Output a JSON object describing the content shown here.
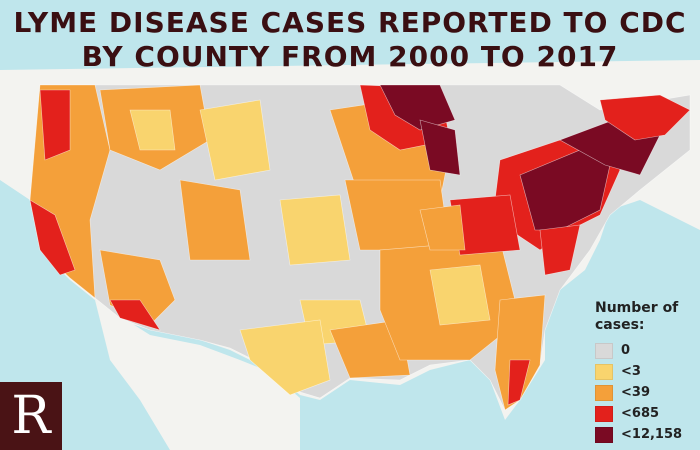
{
  "title": {
    "line1": "LYME DISEASE CASES REPORTED TO CDC",
    "line2": "BY COUNTY FROM 2000 TO 2017"
  },
  "legend": {
    "title": "Number of cases:",
    "items": [
      {
        "label": "0",
        "color": "#d9d9d9"
      },
      {
        "label": "<3",
        "color": "#f9d46e"
      },
      {
        "label": "<39",
        "color": "#f4a03a"
      },
      {
        "label": "<685",
        "color": "#e3211c"
      },
      {
        "label": "<12,158",
        "color": "#7a0a23"
      }
    ]
  },
  "logo": {
    "letter": "R",
    "color": "#4a1315"
  },
  "colors": {
    "ocean": "#bfe6ec",
    "land_outside": "#f3f3f0",
    "title": "#3a0f12"
  }
}
